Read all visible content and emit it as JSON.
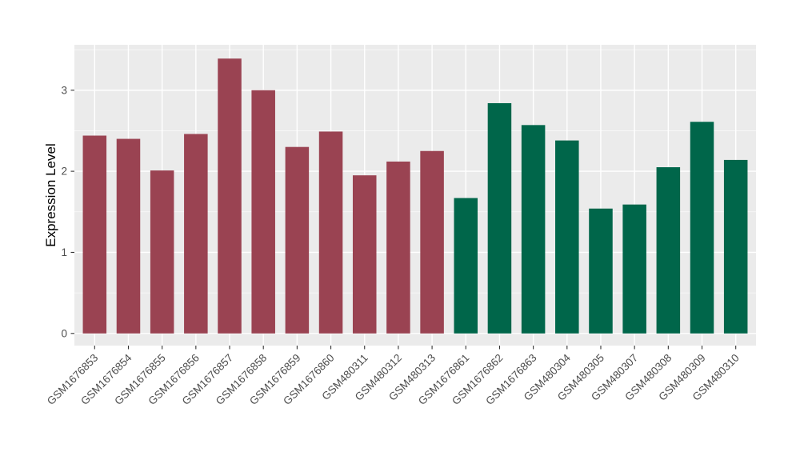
{
  "chart_data": {
    "type": "bar",
    "title": "",
    "xlabel": "",
    "ylabel": "Expression Level",
    "legend": "none",
    "grid": true,
    "ylim": [
      -0.15,
      3.56
    ],
    "yticks": [
      0,
      1,
      2,
      3
    ],
    "yticks_minor": [
      0.5,
      1.5,
      2.5,
      3.5
    ],
    "categories": [
      "GSM1676853",
      "GSM1676854",
      "GSM1676855",
      "GSM1676856",
      "GSM1676857",
      "GSM1676858",
      "GSM1676859",
      "GSM1676860",
      "GSM480311",
      "GSM480312",
      "GSM480313",
      "GSM1676861",
      "GSM1676862",
      "GSM1676863",
      "GSM480304",
      "GSM480305",
      "GSM480307",
      "GSM480308",
      "GSM480309",
      "GSM480310"
    ],
    "values": [
      2.44,
      2.4,
      2.01,
      2.46,
      3.39,
      3.0,
      2.3,
      2.49,
      1.95,
      2.12,
      2.25,
      1.67,
      2.84,
      2.57,
      2.38,
      1.54,
      1.59,
      2.05,
      2.61,
      2.14
    ],
    "groups": [
      "group1",
      "group1",
      "group1",
      "group1",
      "group1",
      "group1",
      "group1",
      "group1",
      "group1",
      "group1",
      "group1",
      "group2",
      "group2",
      "group2",
      "group2",
      "group2",
      "group2",
      "group2",
      "group2",
      "group2"
    ],
    "group_colors": {
      "group1": "#9A4352",
      "group2": "#00664A"
    },
    "panel_bg": "#EBEBEB",
    "grid_color": "#FFFFFF",
    "tick_color": "#333333",
    "tick_label_color": "#4D4D4D",
    "axis_title_color": "#000000"
  }
}
